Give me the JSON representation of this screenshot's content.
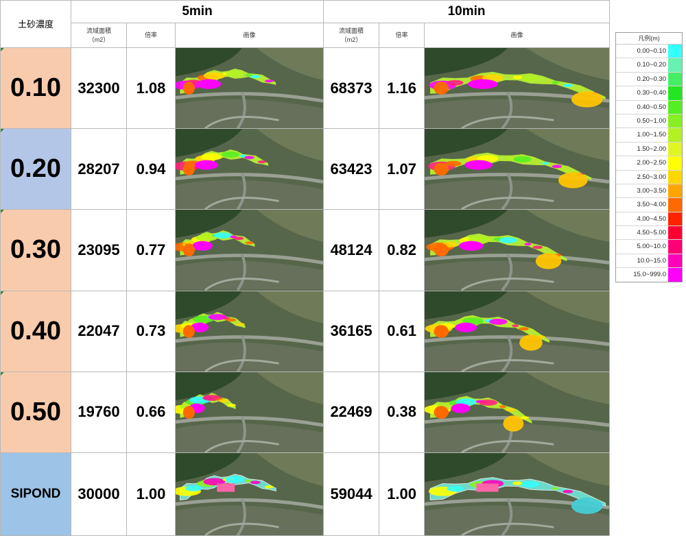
{
  "header": {
    "concentration_label": "土砂濃度",
    "groups": [
      {
        "title": "5min",
        "area_label": "流域面積",
        "area_unit": "（m2）",
        "ratio_label": "倍率",
        "image_label": "画像"
      },
      {
        "title": "10min",
        "area_label": "流域面積",
        "area_unit": "（m2）",
        "ratio_label": "倍率",
        "image_label": "画像"
      }
    ]
  },
  "rows": [
    {
      "concentration": "0.10",
      "bg": "#f8cbad",
      "area5": "32300",
      "ratio5": "1.08",
      "area10": "68373",
      "ratio10": "1.16"
    },
    {
      "concentration": "0.20",
      "bg": "#b4c6e7",
      "area5": "28207",
      "ratio5": "0.94",
      "area10": "63423",
      "ratio10": "1.07"
    },
    {
      "concentration": "0.30",
      "bg": "#f8cbad",
      "area5": "23095",
      "ratio5": "0.77",
      "area10": "48124",
      "ratio10": "0.82"
    },
    {
      "concentration": "0.40",
      "bg": "#f8cbad",
      "area5": "22047",
      "ratio5": "0.73",
      "area10": "36165",
      "ratio10": "0.61"
    },
    {
      "concentration": "0.50",
      "bg": "#f8cbad",
      "area5": "19760",
      "ratio5": "0.66",
      "area10": "22469",
      "ratio10": "0.38"
    },
    {
      "concentration": "SIPOND",
      "bg": "#9dc3e6",
      "area5": "30000",
      "ratio5": "1.00",
      "area10": "59044",
      "ratio10": "1.00"
    }
  ],
  "legend": {
    "title": "凡例(m)",
    "items": [
      {
        "label": "0.00~0.10",
        "color": "#33ffff"
      },
      {
        "label": "0.10~0.20",
        "color": "#66f2b0"
      },
      {
        "label": "0.20~0.30",
        "color": "#44ee66"
      },
      {
        "label": "0.30~0.40",
        "color": "#22e622"
      },
      {
        "label": "0.40~0.50",
        "color": "#55ee22"
      },
      {
        "label": "0.50~1.00",
        "color": "#88f022"
      },
      {
        "label": "1.00~1.50",
        "color": "#b2f222"
      },
      {
        "label": "1.50~2.00",
        "color": "#e0f522"
      },
      {
        "label": "2.00~2.50",
        "color": "#ffff00"
      },
      {
        "label": "2.50~3.00",
        "color": "#ffd700"
      },
      {
        "label": "3.00~3.50",
        "color": "#ffa500"
      },
      {
        "label": "3.50~4.00",
        "color": "#ff6a00"
      },
      {
        "label": "4.00~4.50",
        "color": "#ff2200"
      },
      {
        "label": "4.50~5.00",
        "color": "#ff0033"
      },
      {
        "label": "5.00~10.0",
        "color": "#ff0077"
      },
      {
        "label": "10.0~15.0",
        "color": "#ff00bb"
      },
      {
        "label": "15.0~999.0",
        "color": "#ff00ff"
      }
    ]
  }
}
